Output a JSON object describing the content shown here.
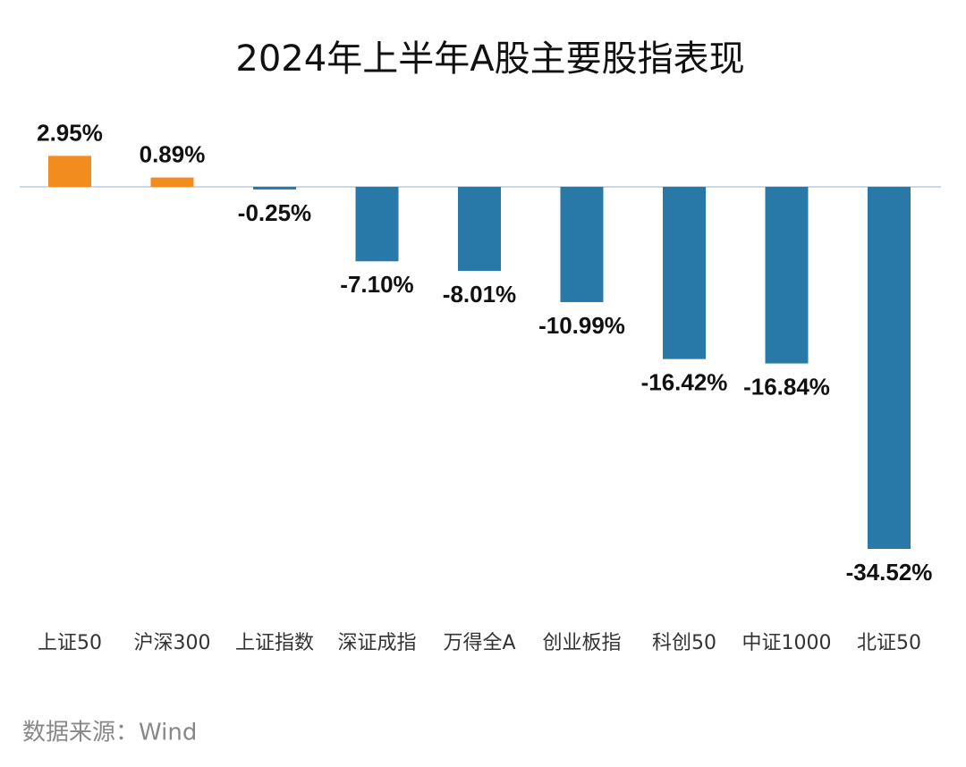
{
  "chart_data": {
    "type": "bar",
    "title": "2024年上半年A股主要股指表现",
    "categories": [
      "上证50",
      "沪深300",
      "上证指数",
      "深证成指",
      "万得全A",
      "创业板指",
      "科创50",
      "中证1000",
      "北证50"
    ],
    "values": [
      2.95,
      0.89,
      -0.25,
      -7.1,
      -8.01,
      -10.99,
      -16.42,
      -16.84,
      -34.52
    ],
    "value_labels": [
      "2.95%",
      "0.89%",
      "-0.25%",
      "-7.10%",
      "-8.01%",
      "-10.99%",
      "-16.42%",
      "-16.84%",
      "-34.52%"
    ],
    "color_positive": "#f28c1e",
    "color_negative": "#2878a8",
    "source": "数据来源：Wind"
  }
}
